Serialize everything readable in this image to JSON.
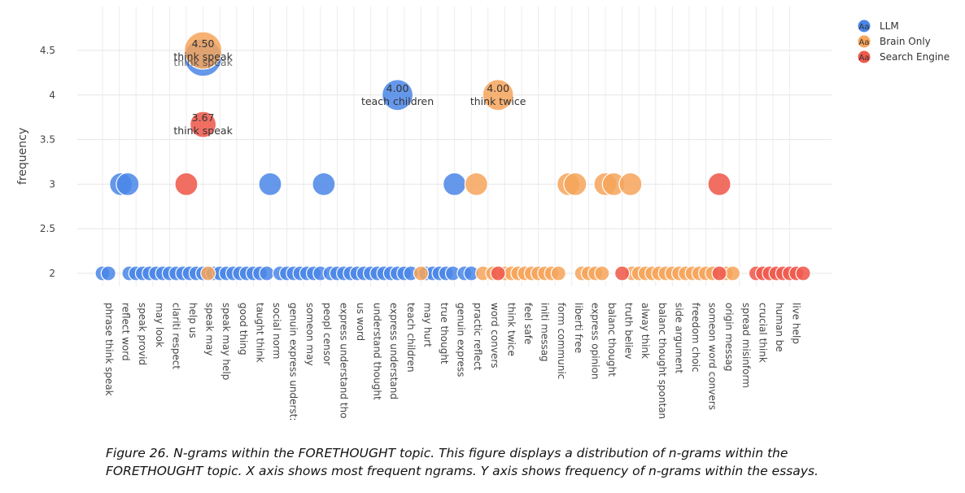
{
  "chart_data": {
    "type": "scatter",
    "ylabel": "frequency",
    "ylim": [
      1.9,
      4.8
    ],
    "yticks": [
      2,
      2.5,
      3,
      3.5,
      4,
      4.5
    ],
    "ytick_labels": [
      "2",
      "2.5",
      "3",
      "3.5",
      "4",
      "4.5"
    ],
    "grid": true,
    "legend_position": "top-right",
    "legend_glyph": "Aa",
    "series": [
      {
        "name": "LLM",
        "color": "#4a86e8"
      },
      {
        "name": "Brain Only",
        "color": "#f6a55a"
      },
      {
        "name": "Search Engine",
        "color": "#ef5a4d"
      }
    ],
    "categories": [
      "phrase think speak",
      "reflect word",
      "speak provid",
      "may look",
      "clariti respect",
      "help us",
      "speak may",
      "speak may help",
      "good thing",
      "taught think",
      "social norm",
      "genuin express underst:",
      "someon may",
      "peopl censor",
      "express understand tho",
      "us word",
      "understand thought",
      "express understand",
      "teach children",
      "may hurt",
      "true thought",
      "genuin express",
      "practic reflect",
      "word convers",
      "think twice",
      "feel safe",
      "initi messag",
      "form communic",
      "liberti free",
      "express opinion",
      "balanc thought",
      "truth believ",
      "alway think",
      "balanc thought spontan",
      "side argument",
      "freedom choic",
      "someon word convers",
      "origin messag",
      "spread misinform",
      "crucial think",
      "human be",
      "live help"
    ],
    "points": [
      {
        "series": "LLM",
        "x": 0,
        "y": 2
      },
      {
        "series": "LLM",
        "x": 0.35,
        "y": 2
      },
      {
        "series": "LLM",
        "x": 1.6,
        "y": 2
      },
      {
        "series": "LLM",
        "x": 2.0,
        "y": 2
      },
      {
        "series": "LLM",
        "x": 2.4,
        "y": 2
      },
      {
        "series": "LLM",
        "x": 2.8,
        "y": 2
      },
      {
        "series": "LLM",
        "x": 3.2,
        "y": 2
      },
      {
        "series": "LLM",
        "x": 3.6,
        "y": 2
      },
      {
        "series": "LLM",
        "x": 4.0,
        "y": 2
      },
      {
        "series": "LLM",
        "x": 4.4,
        "y": 2
      },
      {
        "series": "LLM",
        "x": 4.8,
        "y": 2
      },
      {
        "series": "LLM",
        "x": 5.2,
        "y": 2
      },
      {
        "series": "LLM",
        "x": 5.6,
        "y": 2
      },
      {
        "series": "LLM",
        "x": 6.0,
        "y": 2
      },
      {
        "series": "LLM",
        "x": 6.6,
        "y": 2
      },
      {
        "series": "LLM",
        "x": 7.0,
        "y": 2
      },
      {
        "series": "LLM",
        "x": 7.4,
        "y": 2
      },
      {
        "series": "LLM",
        "x": 7.8,
        "y": 2
      },
      {
        "series": "LLM",
        "x": 8.2,
        "y": 2
      },
      {
        "series": "LLM",
        "x": 8.6,
        "y": 2
      },
      {
        "series": "LLM",
        "x": 9.0,
        "y": 2
      },
      {
        "series": "LLM",
        "x": 9.4,
        "y": 2
      },
      {
        "series": "LLM",
        "x": 9.8,
        "y": 2
      },
      {
        "series": "LLM",
        "x": 10.6,
        "y": 2
      },
      {
        "series": "LLM",
        "x": 11.0,
        "y": 2
      },
      {
        "series": "LLM",
        "x": 11.4,
        "y": 2
      },
      {
        "series": "LLM",
        "x": 11.8,
        "y": 2
      },
      {
        "series": "LLM",
        "x": 12.2,
        "y": 2
      },
      {
        "series": "LLM",
        "x": 12.6,
        "y": 2
      },
      {
        "series": "LLM",
        "x": 13.0,
        "y": 2
      },
      {
        "series": "LLM",
        "x": 13.6,
        "y": 2
      },
      {
        "series": "LLM",
        "x": 14.0,
        "y": 2
      },
      {
        "series": "LLM",
        "x": 14.4,
        "y": 2
      },
      {
        "series": "LLM",
        "x": 14.8,
        "y": 2
      },
      {
        "series": "LLM",
        "x": 15.2,
        "y": 2
      },
      {
        "series": "LLM",
        "x": 15.6,
        "y": 2
      },
      {
        "series": "LLM",
        "x": 16.0,
        "y": 2
      },
      {
        "series": "LLM",
        "x": 16.4,
        "y": 2
      },
      {
        "series": "LLM",
        "x": 16.8,
        "y": 2
      },
      {
        "series": "LLM",
        "x": 17.2,
        "y": 2
      },
      {
        "series": "LLM",
        "x": 17.6,
        "y": 2
      },
      {
        "series": "LLM",
        "x": 18.0,
        "y": 2
      },
      {
        "series": "LLM",
        "x": 18.4,
        "y": 2
      },
      {
        "series": "LLM",
        "x": 19.3,
        "y": 2
      },
      {
        "series": "LLM",
        "x": 19.7,
        "y": 2
      },
      {
        "series": "LLM",
        "x": 20.1,
        "y": 2
      },
      {
        "series": "LLM",
        "x": 20.5,
        "y": 2
      },
      {
        "series": "LLM",
        "x": 20.9,
        "y": 2
      },
      {
        "series": "LLM",
        "x": 21.6,
        "y": 2
      },
      {
        "series": "LLM",
        "x": 22.0,
        "y": 2
      },
      {
        "series": "Brain Only",
        "x": 6.3,
        "y": 2
      },
      {
        "series": "Brain Only",
        "x": 19.0,
        "y": 2
      },
      {
        "series": "Brain Only",
        "x": 22.7,
        "y": 2
      },
      {
        "series": "Brain Only",
        "x": 23.3,
        "y": 2
      },
      {
        "series": "Brain Only",
        "x": 24.0,
        "y": 2
      },
      {
        "series": "Brain Only",
        "x": 24.4,
        "y": 2
      },
      {
        "series": "Brain Only",
        "x": 24.8,
        "y": 2
      },
      {
        "series": "Brain Only",
        "x": 25.2,
        "y": 2
      },
      {
        "series": "Brain Only",
        "x": 25.6,
        "y": 2
      },
      {
        "series": "Brain Only",
        "x": 26.0,
        "y": 2
      },
      {
        "series": "Brain Only",
        "x": 26.4,
        "y": 2
      },
      {
        "series": "Brain Only",
        "x": 26.8,
        "y": 2
      },
      {
        "series": "Brain Only",
        "x": 27.2,
        "y": 2
      },
      {
        "series": "Brain Only",
        "x": 28.6,
        "y": 2
      },
      {
        "series": "Brain Only",
        "x": 29.0,
        "y": 2
      },
      {
        "series": "Brain Only",
        "x": 29.4,
        "y": 2
      },
      {
        "series": "Brain Only",
        "x": 29.8,
        "y": 2
      },
      {
        "series": "Brain Only",
        "x": 31.6,
        "y": 2
      },
      {
        "series": "Brain Only",
        "x": 32.0,
        "y": 2
      },
      {
        "series": "Brain Only",
        "x": 32.4,
        "y": 2
      },
      {
        "series": "Brain Only",
        "x": 32.8,
        "y": 2
      },
      {
        "series": "Brain Only",
        "x": 33.2,
        "y": 2
      },
      {
        "series": "Brain Only",
        "x": 33.6,
        "y": 2
      },
      {
        "series": "Brain Only",
        "x": 34.0,
        "y": 2
      },
      {
        "series": "Brain Only",
        "x": 34.4,
        "y": 2
      },
      {
        "series": "Brain Only",
        "x": 34.8,
        "y": 2
      },
      {
        "series": "Brain Only",
        "x": 35.2,
        "y": 2
      },
      {
        "series": "Brain Only",
        "x": 35.6,
        "y": 2
      },
      {
        "series": "Brain Only",
        "x": 36.0,
        "y": 2
      },
      {
        "series": "Brain Only",
        "x": 36.4,
        "y": 2
      },
      {
        "series": "Brain Only",
        "x": 37.2,
        "y": 2
      },
      {
        "series": "Brain Only",
        "x": 37.6,
        "y": 2
      },
      {
        "series": "Search Engine",
        "x": 23.6,
        "y": 2
      },
      {
        "series": "Search Engine",
        "x": 31.0,
        "y": 2
      },
      {
        "series": "Search Engine",
        "x": 36.8,
        "y": 2
      },
      {
        "series": "Search Engine",
        "x": 39.0,
        "y": 2
      },
      {
        "series": "Search Engine",
        "x": 39.4,
        "y": 2
      },
      {
        "series": "Search Engine",
        "x": 39.8,
        "y": 2
      },
      {
        "series": "Search Engine",
        "x": 40.2,
        "y": 2
      },
      {
        "series": "Search Engine",
        "x": 40.6,
        "y": 2
      },
      {
        "series": "Search Engine",
        "x": 41.0,
        "y": 2
      },
      {
        "series": "Search Engine",
        "x": 41.4,
        "y": 2
      },
      {
        "series": "Search Engine",
        "x": 41.8,
        "y": 2
      },
      {
        "series": "LLM",
        "x": 1.1,
        "y": 3
      },
      {
        "series": "LLM",
        "x": 1.5,
        "y": 3
      },
      {
        "series": "LLM",
        "x": 10.0,
        "y": 3
      },
      {
        "series": "LLM",
        "x": 13.2,
        "y": 3
      },
      {
        "series": "LLM",
        "x": 21.0,
        "y": 3
      },
      {
        "series": "Brain Only",
        "x": 22.3,
        "y": 3
      },
      {
        "series": "Brain Only",
        "x": 27.8,
        "y": 3
      },
      {
        "series": "Brain Only",
        "x": 28.2,
        "y": 3
      },
      {
        "series": "Brain Only",
        "x": 30.0,
        "y": 3
      },
      {
        "series": "Brain Only",
        "x": 30.5,
        "y": 3
      },
      {
        "series": "Brain Only",
        "x": 31.5,
        "y": 3
      },
      {
        "series": "Search Engine",
        "x": 5.0,
        "y": 3
      },
      {
        "series": "Search Engine",
        "x": 36.8,
        "y": 3
      },
      {
        "series": "LLM",
        "x": 6.0,
        "y": 4.42,
        "size": "xl"
      },
      {
        "series": "Brain Only",
        "x": 6.0,
        "y": 4.5,
        "label_value": "4.50",
        "label_text": "think speak",
        "size": "xl"
      },
      {
        "series": "LLM",
        "x": 17.6,
        "y": 4.0,
        "label_value": "4.00",
        "label_text": "teach children",
        "size": "lg"
      },
      {
        "series": "Brain Only",
        "x": 23.6,
        "y": 4.0,
        "label_value": "4.00",
        "label_text": "think twice",
        "size": "lg"
      },
      {
        "series": "Search Engine",
        "x": 6.0,
        "y": 3.67,
        "label_value": "3.67",
        "label_text": "think speak",
        "size": "md"
      }
    ]
  },
  "overlap_label": "think speak",
  "caption": {
    "line1": "Figure 26. N-grams within the FORETHOUGHT topic. This figure displays a distribution of n-grams within the",
    "line2": "FORETHOUGHT topic. X axis shows most frequent ngrams. Y axis shows frequency of n-grams within the essays."
  }
}
